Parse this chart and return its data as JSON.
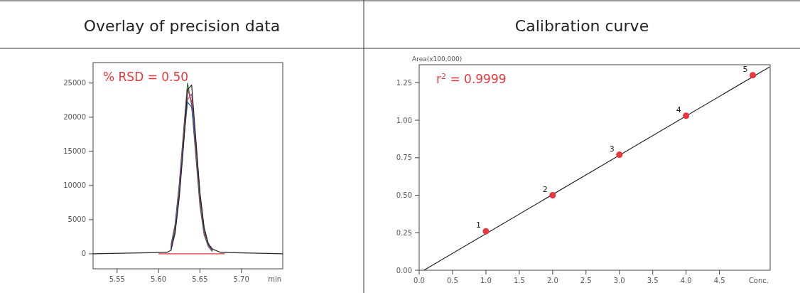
{
  "chart_data": [
    {
      "type": "line",
      "title": "Overlay of precision data",
      "xlabel": "min",
      "annotations": [
        "% RSD = 0.50"
      ],
      "x": [
        5.615,
        5.62,
        5.625,
        5.63,
        5.635,
        5.64,
        5.645,
        5.65,
        5.655,
        5.66,
        5.665
      ],
      "series": [
        {
          "color": "#1f7a4a",
          "values": [
            1300,
            4300,
            10200,
            17600,
            25000,
            21800,
            14300,
            7000,
            2800,
            1100,
            300
          ]
        },
        {
          "color": "#c0303a",
          "values": [
            1000,
            4000,
            9800,
            17200,
            24200,
            22200,
            15000,
            7600,
            3100,
            1200,
            400
          ]
        },
        {
          "color": "#b04a9a",
          "values": [
            800,
            3500,
            9000,
            16400,
            22600,
            23400,
            16000,
            8300,
            3500,
            1400,
            500
          ]
        },
        {
          "color": "#2a5aa8",
          "values": [
            600,
            3400,
            8800,
            16200,
            22200,
            21500,
            16300,
            8600,
            3700,
            1400,
            600
          ]
        },
        {
          "color": "#222222",
          "x": [
            5.521,
            5.61,
            5.615,
            5.62,
            5.625,
            5.63,
            5.635,
            5.64,
            5.645,
            5.65,
            5.655,
            5.66,
            5.665,
            5.675,
            5.75
          ],
          "values": [
            0,
            200,
            500,
            3000,
            8200,
            15500,
            24000,
            24700,
            16800,
            9000,
            3900,
            1500,
            700,
            200,
            0
          ]
        },
        {
          "color": "#e8383d",
          "x": [
            5.6,
            5.68
          ],
          "values": [
            0,
            0
          ]
        }
      ],
      "xlim": [
        5.521,
        5.75
      ],
      "xticks": [
        5.55,
        {
          "value": 5.6,
          "label": "5.60"
        },
        5.65,
        {
          "value": 5.7,
          "label": "5.70"
        }
      ],
      "ylim": [
        -2200,
        28000
      ],
      "yticks": [
        0,
        5000,
        10000,
        15000,
        20000,
        25000
      ],
      "marker": "none",
      "line_style": "solid"
    },
    {
      "type": "scatter",
      "title": "Calibration curve",
      "xlabel": "Conc.",
      "ylabel": "Area(x100,000)",
      "annotations": [
        "r$^{2}$ = 0.9999",
        {
          "text": "1",
          "x": 1,
          "y": 0.26
        },
        {
          "text": "2",
          "x": 2,
          "y": 0.5
        },
        {
          "text": "3",
          "x": 3,
          "y": 0.77
        },
        {
          "text": "4",
          "x": 4,
          "y": 1.03
        },
        {
          "text": "5",
          "x": 5,
          "y": 1.3
        }
      ],
      "series": [
        {
          "type": "line",
          "color": "#222222",
          "x": [
            0.07,
            5.25
          ],
          "values": [
            0,
            1.355
          ],
          "marker": "none"
        },
        {
          "color": "#e8383d",
          "x": [
            1,
            2,
            3,
            4,
            5
          ],
          "values": [
            0.26,
            0.5,
            0.77,
            1.03,
            1.3
          ],
          "marker": "circle"
        }
      ],
      "xlim": [
        0,
        5.26
      ],
      "xticks": [
        {
          "value": 0,
          "label": "0.0"
        },
        0.5,
        {
          "value": 1,
          "label": "1.0"
        },
        1.5,
        {
          "value": 2,
          "label": "2.0"
        },
        2.5,
        {
          "value": 3,
          "label": "3.0"
        },
        3.5,
        {
          "value": 4,
          "label": "4.0"
        },
        4.5
      ],
      "ylim": [
        0,
        1.37
      ],
      "yticks": [
        {
          "value": 0,
          "label": "0.00"
        },
        0.25,
        {
          "value": 0.5,
          "label": "0.50"
        },
        0.75,
        {
          "value": 1,
          "label": "1.00"
        },
        1.25
      ]
    }
  ]
}
